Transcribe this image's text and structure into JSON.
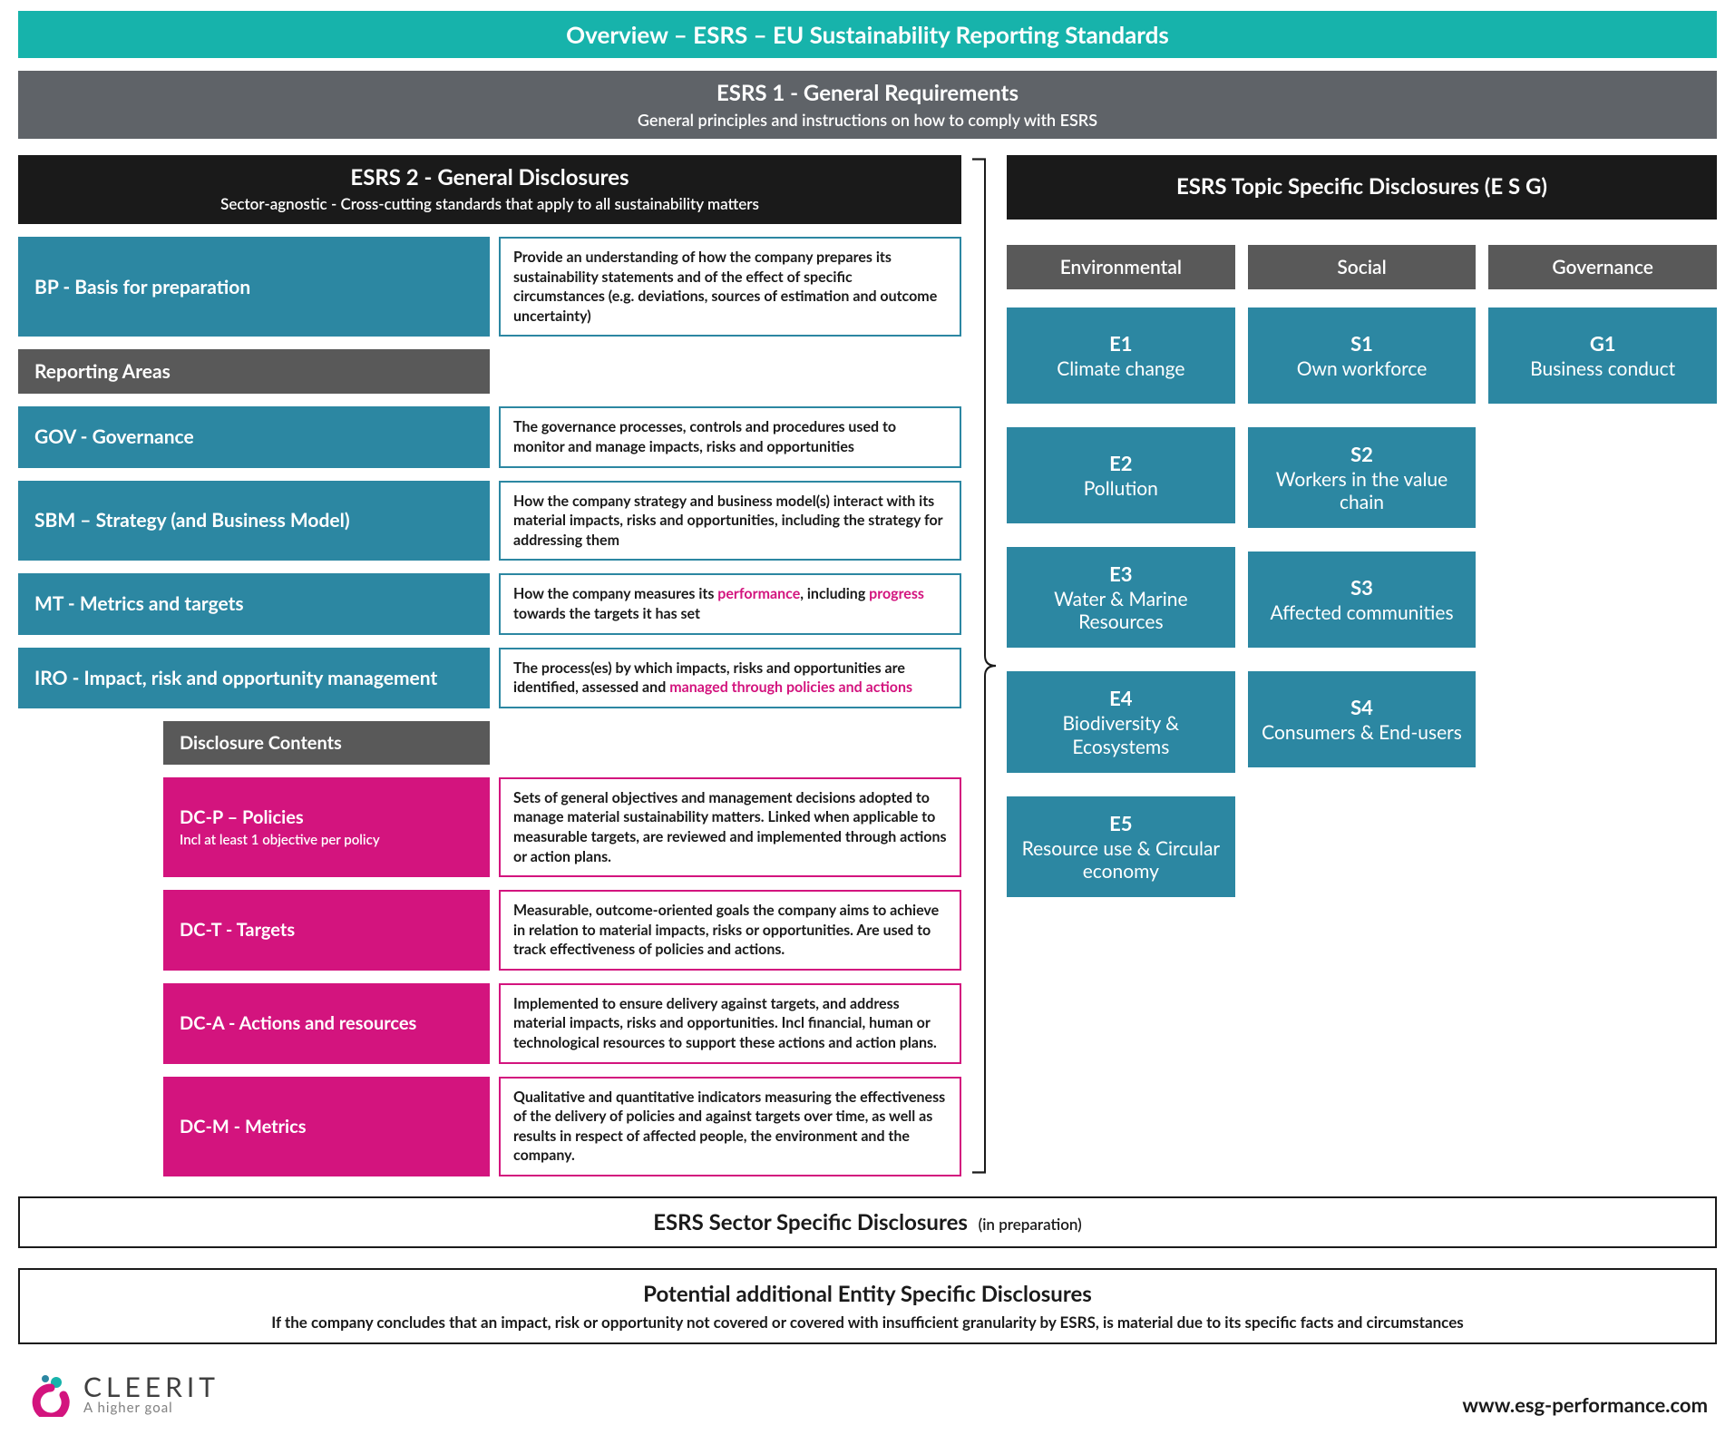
{
  "colors": {
    "header_teal": "#17b3ab",
    "section_gray": "#5f6368",
    "block_gray": "#595959",
    "block_black": "#1a1a1a",
    "accent_teal": "#2c87a2",
    "accent_pink": "#d3147e",
    "background": "#ffffff",
    "text_dark": "#1a1a1a",
    "text_light": "#ffffff"
  },
  "header": {
    "title": "Overview – ESRS – EU Sustainability Reporting Standards"
  },
  "esrs1": {
    "title": "ESRS 1 - General Requirements",
    "subtitle": "General principles and instructions on how to comply with ESRS"
  },
  "esrs2": {
    "title": "ESRS 2 - General Disclosures",
    "subtitle": "Sector-agnostic - Cross-cutting standards that apply to all sustainability matters",
    "bp": {
      "label": "BP - Basis for preparation",
      "desc": "Provide an understanding of how the company prepares its sustainability statements and of the effect of specific circumstances (e.g. deviations, sources of estimation and outcome uncertainty)"
    },
    "reporting_areas_label": "Reporting Areas",
    "areas": {
      "gov": {
        "label": "GOV - Governance",
        "desc": "The governance processes, controls and procedures used to monitor and manage impacts, risks and opportunities"
      },
      "sbm": {
        "label": "SBM – Strategy (and Business Model)",
        "desc": "How the company strategy and business model(s) interact with its material impacts, risks and opportunities, including the strategy for addressing them"
      },
      "mt": {
        "label": "MT - Metrics and targets",
        "desc_pre": "How the company measures its ",
        "desc_h1": "performance",
        "desc_mid": ", including ",
        "desc_h2": "progress",
        "desc_post": " towards the targets it has set"
      },
      "iro": {
        "label": "IRO - Impact, risk and opportunity management",
        "desc_pre": "The process(es) by which impacts, risks and opportunities are identified, assessed and ",
        "desc_h1": "managed through policies and actions"
      }
    },
    "disclosure_contents_label": "Disclosure Contents",
    "dc": {
      "p": {
        "label": "DC-P – Policies",
        "sub": "Incl at least 1 objective per policy",
        "desc": "Sets of general objectives and management decisions adopted to manage material sustainability matters. Linked when applicable to measurable targets, are reviewed and implemented through actions or action plans."
      },
      "t": {
        "label": "DC-T - Targets",
        "desc": "Measurable, outcome-oriented goals the company aims to achieve in relation to material impacts, risks or opportunities. Are used to track effectiveness of policies and actions."
      },
      "a": {
        "label": "DC-A - Actions and resources",
        "desc": "Implemented to ensure delivery against targets, and address material impacts, risks and opportunities. Incl financial, human or technological resources to support these actions and action plans."
      },
      "m": {
        "label": "DC-M - Metrics",
        "desc": "Qualitative and quantitative indicators measuring the effectiveness of the delivery of policies and against targets over time, as well as results in respect of affected people, the environment and the company."
      }
    }
  },
  "topic": {
    "title": "ESRS Topic Specific Disclosures   (E S G)",
    "pillars": {
      "env": "Environmental",
      "soc": "Social",
      "gov": "Governance"
    },
    "env": [
      {
        "code": "E1",
        "name": "Climate change"
      },
      {
        "code": "E2",
        "name": "Pollution"
      },
      {
        "code": "E3",
        "name": "Water & Marine Resources"
      },
      {
        "code": "E4",
        "name": "Biodiversity & Ecosystems"
      },
      {
        "code": "E5",
        "name": "Resource use & Circular economy"
      }
    ],
    "soc": [
      {
        "code": "S1",
        "name": "Own workforce"
      },
      {
        "code": "S2",
        "name": "Workers in the value chain"
      },
      {
        "code": "S3",
        "name": "Affected communities"
      },
      {
        "code": "S4",
        "name": "Consumers & End-users"
      }
    ],
    "gov": [
      {
        "code": "G1",
        "name": "Business conduct"
      }
    ]
  },
  "sector": {
    "title": "ESRS Sector Specific Disclosures",
    "paren": "(in preparation)"
  },
  "entity": {
    "title": "Potential additional Entity Specific Disclosures",
    "sub": "If the company concludes that an impact, risk or opportunity not covered or covered with insufficient granularity by ESRS, is material due to its specific facts and circumstances"
  },
  "footer": {
    "brand": "CLEERIT",
    "tagline": "A higher goal",
    "url": "www.esg-performance.com"
  }
}
